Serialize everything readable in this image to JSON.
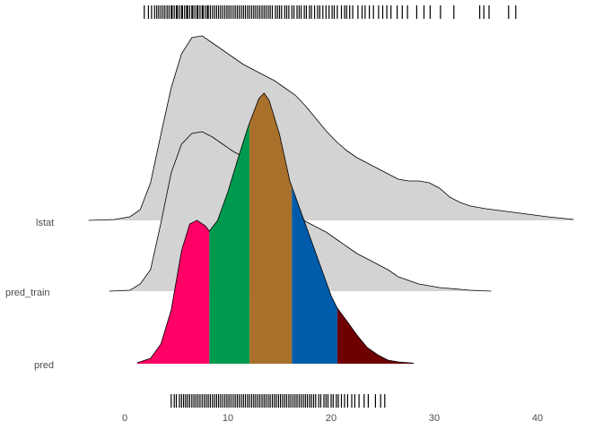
{
  "chart_data": {
    "type": "ridgeline-density",
    "title": "",
    "xlabel": "",
    "ylabel": "",
    "xlim": [
      -3.5,
      44
    ],
    "x_ticks": [
      "0",
      "10",
      "20",
      "30",
      "40"
    ],
    "x_tick_values": [
      0,
      10,
      20,
      30,
      40
    ],
    "grid": false,
    "rows": [
      "lstat",
      "pred_train",
      "pred"
    ],
    "series": [
      {
        "name": "lstat",
        "fill": "#d3d3d3",
        "x": [
          -3.5,
          -1,
          0.5,
          1.5,
          2.5,
          3.5,
          4.5,
          5.5,
          6.5,
          7.5,
          8.5,
          9.5,
          10.5,
          11.5,
          12.5,
          13.5,
          14.5,
          15.5,
          16.5,
          17.5,
          18.5,
          19.5,
          20.5,
          21.5,
          22.5,
          23.5,
          24.5,
          25.5,
          26.5,
          27.5,
          28.5,
          29.5,
          30.5,
          31.5,
          32.5,
          33.5,
          35,
          37,
          39,
          41,
          43.5
        ],
        "density": [
          0,
          0.005,
          0.02,
          0.06,
          0.21,
          0.48,
          0.74,
          0.93,
          1.02,
          1.03,
          0.99,
          0.95,
          0.91,
          0.87,
          0.84,
          0.81,
          0.78,
          0.74,
          0.7,
          0.64,
          0.57,
          0.5,
          0.44,
          0.39,
          0.35,
          0.32,
          0.29,
          0.26,
          0.23,
          0.22,
          0.22,
          0.21,
          0.18,
          0.13,
          0.1,
          0.08,
          0.065,
          0.05,
          0.035,
          0.02,
          0.005
        ]
      },
      {
        "name": "pred_train",
        "fill": "#d3d3d3",
        "x": [
          -1.5,
          0.5,
          1.5,
          2.5,
          3.5,
          4.5,
          5.5,
          6.5,
          7.5,
          8.5,
          9.5,
          10.5,
          11.5,
          12.5,
          13.5,
          14.5,
          15.5,
          16.5,
          17.5,
          18.5,
          19.5,
          20.5,
          21.5,
          22.5,
          23.5,
          24.5,
          25.5,
          26.5,
          27.5,
          28.5,
          29.5,
          30.5,
          31.5,
          32.5,
          33.5,
          35.5
        ],
        "density": [
          0,
          0.005,
          0.04,
          0.12,
          0.38,
          0.66,
          0.82,
          0.88,
          0.89,
          0.86,
          0.82,
          0.78,
          0.75,
          0.71,
          0.65,
          0.57,
          0.49,
          0.43,
          0.39,
          0.36,
          0.33,
          0.29,
          0.25,
          0.21,
          0.18,
          0.15,
          0.12,
          0.08,
          0.06,
          0.04,
          0.03,
          0.02,
          0.015,
          0.01,
          0.005,
          0
        ]
      },
      {
        "name": "pred",
        "quantile_fills": [
          "#ff0066",
          "#009a4e",
          "#a8702b",
          "#005baa",
          "#6f0000"
        ],
        "quantile_cuts": [
          8.2,
          12.1,
          16.2,
          20.6
        ],
        "x": [
          1.2,
          2.5,
          3.5,
          4.5,
          5.5,
          6.3,
          7,
          7.8,
          8.2,
          9,
          10,
          11,
          12,
          13,
          13.5,
          14,
          15,
          16,
          17,
          18,
          19,
          20,
          20.6,
          21.5,
          22.5,
          23.5,
          24.5,
          25.5,
          26.5,
          28
        ],
        "density": [
          0.005,
          0.03,
          0.11,
          0.3,
          0.63,
          0.78,
          0.8,
          0.77,
          0.74,
          0.8,
          0.96,
          1.15,
          1.33,
          1.48,
          1.51,
          1.47,
          1.28,
          1.02,
          0.86,
          0.7,
          0.54,
          0.38,
          0.31,
          0.24,
          0.16,
          0.09,
          0.05,
          0.02,
          0.01,
          0.003
        ]
      }
    ],
    "rug_top": [
      1.9,
      2.3,
      2.6,
      2.9,
      3.1,
      3.3,
      3.5,
      3.7,
      3.9,
      4.1,
      4.3,
      4.5,
      4.6,
      4.8,
      5.0,
      5.1,
      5.3,
      5.5,
      5.6,
      5.8,
      6.0,
      6.1,
      6.3,
      6.5,
      6.6,
      6.8,
      7.0,
      7.1,
      7.3,
      7.5,
      7.6,
      7.8,
      8.0,
      8.1,
      8.3,
      8.5,
      8.7,
      8.9,
      9.1,
      9.3,
      9.5,
      9.7,
      9.9,
      10.1,
      10.3,
      10.5,
      10.7,
      10.9,
      11.1,
      11.3,
      11.5,
      11.7,
      11.9,
      12.1,
      12.3,
      12.5,
      12.7,
      12.9,
      13.1,
      13.3,
      13.5,
      13.7,
      13.9,
      14.1,
      14.3,
      14.6,
      14.8,
      15.0,
      15.2,
      15.5,
      15.7,
      15.9,
      16.2,
      16.4,
      16.7,
      16.9,
      17.1,
      17.4,
      17.6,
      17.9,
      18.1,
      18.4,
      18.7,
      18.9,
      19.2,
      19.5,
      19.8,
      20.1,
      20.3,
      20.6,
      21.0,
      21.3,
      21.5,
      21.8,
      22.1,
      22.6,
      23.0,
      23.3,
      23.7,
      24.1,
      24.6,
      25.0,
      25.4,
      25.8,
      26.4,
      26.9,
      27.4,
      28.3,
      29.0,
      29.6,
      30.6,
      31.9,
      34.4,
      34.8,
      35.3,
      37.2,
      37.9
    ],
    "rug_bottom": [
      4.5,
      4.8,
      5.0,
      5.3,
      5.5,
      5.7,
      5.9,
      6.1,
      6.3,
      6.5,
      6.7,
      6.9,
      7.1,
      7.3,
      7.5,
      7.7,
      7.9,
      8.1,
      8.3,
      8.5,
      8.7,
      8.9,
      9.1,
      9.3,
      9.5,
      9.7,
      9.9,
      10.1,
      10.3,
      10.5,
      10.7,
      10.9,
      11.1,
      11.3,
      11.5,
      11.7,
      11.9,
      12.1,
      12.3,
      12.5,
      12.7,
      12.9,
      13.1,
      13.3,
      13.5,
      13.7,
      13.9,
      14.1,
      14.3,
      14.5,
      14.7,
      14.9,
      15.1,
      15.3,
      15.5,
      15.7,
      15.9,
      16.1,
      16.3,
      16.5,
      16.7,
      16.9,
      17.1,
      17.3,
      17.5,
      17.7,
      17.9,
      18.1,
      18.3,
      18.5,
      18.8,
      19.0,
      19.3,
      19.5,
      19.7,
      20.0,
      20.2,
      20.5,
      20.7,
      21.0,
      21.3,
      21.6,
      22.0,
      22.3,
      22.7,
      23.2,
      23.6,
      24.3,
      24.8,
      25.2
    ]
  }
}
